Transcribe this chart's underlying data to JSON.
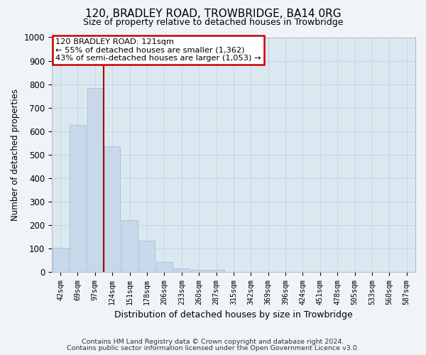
{
  "title": "120, BRADLEY ROAD, TROWBRIDGE, BA14 0RG",
  "subtitle": "Size of property relative to detached houses in Trowbridge",
  "xlabel": "Distribution of detached houses by size in Trowbridge",
  "ylabel": "Number of detached properties",
  "categories": [
    "42sqm",
    "69sqm",
    "97sqm",
    "124sqm",
    "151sqm",
    "178sqm",
    "206sqm",
    "233sqm",
    "260sqm",
    "287sqm",
    "315sqm",
    "342sqm",
    "369sqm",
    "396sqm",
    "424sqm",
    "451sqm",
    "478sqm",
    "505sqm",
    "533sqm",
    "560sqm",
    "587sqm"
  ],
  "values": [
    102,
    626,
    784,
    536,
    220,
    134,
    42,
    16,
    10,
    10,
    0,
    0,
    0,
    0,
    0,
    0,
    0,
    0,
    0,
    0,
    0
  ],
  "bar_color": "#c8d8eb",
  "bar_edge_color": "#a8bfd0",
  "vline_color": "#aa0000",
  "annotation_line1": "120 BRADLEY ROAD: 121sqm",
  "annotation_line2": "← 55% of detached houses are smaller (1,362)",
  "annotation_line3": "43% of semi-detached houses are larger (1,053) →",
  "annotation_box_color": "#cc0000",
  "ylim_max": 1000,
  "yticks": [
    0,
    100,
    200,
    300,
    400,
    500,
    600,
    700,
    800,
    900,
    1000
  ],
  "grid_color": "#c8d4e4",
  "bg_color": "#dce8f0",
  "fig_bg_color": "#f0f4f8",
  "footer1": "Contains HM Land Registry data © Crown copyright and database right 2024.",
  "footer2": "Contains public sector information licensed under the Open Government Licence v3.0."
}
